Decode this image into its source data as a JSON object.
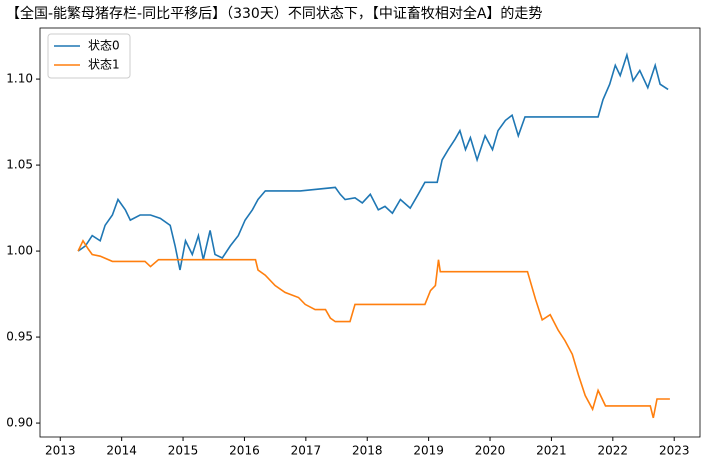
{
  "chart_data": {
    "type": "line",
    "title": "【全国-能繁母猪存栏-同比平移后】（330天）不同状态下，【中证畜牧相对全A】的走势",
    "xlim": [
      2012.67,
      2023.42
    ],
    "xticks": [
      2013,
      2014,
      2015,
      2016,
      2017,
      2018,
      2019,
      2020,
      2021,
      2022,
      2023
    ],
    "ylim": [
      0.8919,
      1.1297
    ],
    "yticks": [
      {
        "value": 0.9,
        "label": "0.90"
      },
      {
        "value": 0.95,
        "label": "0.95"
      },
      {
        "value": 1.0,
        "label": "1.00"
      },
      {
        "value": 1.05,
        "label": "1.05"
      },
      {
        "value": 1.1,
        "label": "1.10"
      }
    ],
    "legend": "upper left",
    "series": [
      {
        "name": "状态0",
        "color": "#1f77b4",
        "x": [
          2013.29,
          2013.41,
          2013.52,
          2013.65,
          2013.73,
          2013.85,
          2013.94,
          2014.06,
          2014.14,
          2014.3,
          2014.47,
          2014.63,
          2014.79,
          2014.87,
          2014.95,
          2015.04,
          2015.15,
          2015.25,
          2015.33,
          2015.44,
          2015.52,
          2015.64,
          2015.77,
          2015.9,
          2016.01,
          2016.13,
          2016.22,
          2016.34,
          2016.91,
          2017.48,
          2017.56,
          2017.64,
          2017.8,
          2017.92,
          2018.05,
          2018.18,
          2018.29,
          2018.41,
          2018.54,
          2018.7,
          2018.83,
          2018.94,
          2019.14,
          2019.22,
          2019.32,
          2019.43,
          2019.51,
          2019.6,
          2019.68,
          2019.79,
          2019.92,
          2020.04,
          2020.13,
          2020.25,
          2020.36,
          2020.46,
          2020.57,
          2021.76,
          2021.84,
          2021.95,
          2022.04,
          2022.12,
          2022.23,
          2022.33,
          2022.44,
          2022.57,
          2022.69,
          2022.77,
          2022.9
        ],
        "values": [
          1.0,
          1.003,
          1.009,
          1.006,
          1.015,
          1.021,
          1.03,
          1.024,
          1.018,
          1.021,
          1.021,
          1.019,
          1.015,
          1.003,
          0.989,
          1.006,
          0.998,
          1.009,
          0.995,
          1.012,
          0.998,
          0.996,
          1.003,
          1.009,
          1.018,
          1.024,
          1.03,
          1.035,
          1.035,
          1.037,
          1.033,
          1.03,
          1.031,
          1.028,
          1.033,
          1.024,
          1.026,
          1.022,
          1.03,
          1.025,
          1.033,
          1.04,
          1.04,
          1.053,
          1.059,
          1.065,
          1.07,
          1.059,
          1.066,
          1.053,
          1.067,
          1.059,
          1.07,
          1.076,
          1.079,
          1.067,
          1.078,
          1.078,
          1.088,
          1.097,
          1.108,
          1.102,
          1.114,
          1.099,
          1.105,
          1.095,
          1.108,
          1.097,
          1.094
        ]
      },
      {
        "name": "状态1",
        "color": "#ff7f0e",
        "x": [
          2013.29,
          2013.37,
          2013.46,
          2013.52,
          2013.65,
          2013.85,
          2014.38,
          2014.47,
          2014.6,
          2015.93,
          2016.18,
          2016.22,
          2016.34,
          2016.5,
          2016.66,
          2016.88,
          2016.99,
          2017.15,
          2017.32,
          2017.4,
          2017.48,
          2017.72,
          2017.8,
          2017.97,
          2018.94,
          2019.03,
          2019.11,
          2019.16,
          2019.19,
          2019.76,
          2020.61,
          2020.74,
          2020.85,
          2020.98,
          2021.11,
          2021.22,
          2021.34,
          2021.44,
          2021.55,
          2021.67,
          2021.76,
          2021.88,
          2022.61,
          2022.66,
          2022.72,
          2022.93
        ],
        "values": [
          1.0,
          1.006,
          1.001,
          0.998,
          0.997,
          0.994,
          0.994,
          0.991,
          0.995,
          0.995,
          0.995,
          0.989,
          0.986,
          0.98,
          0.976,
          0.973,
          0.969,
          0.966,
          0.966,
          0.961,
          0.959,
          0.959,
          0.969,
          0.969,
          0.969,
          0.977,
          0.98,
          0.995,
          0.988,
          0.988,
          0.988,
          0.972,
          0.96,
          0.963,
          0.954,
          0.948,
          0.94,
          0.928,
          0.916,
          0.908,
          0.919,
          0.91,
          0.91,
          0.903,
          0.914,
          0.914
        ]
      }
    ]
  }
}
